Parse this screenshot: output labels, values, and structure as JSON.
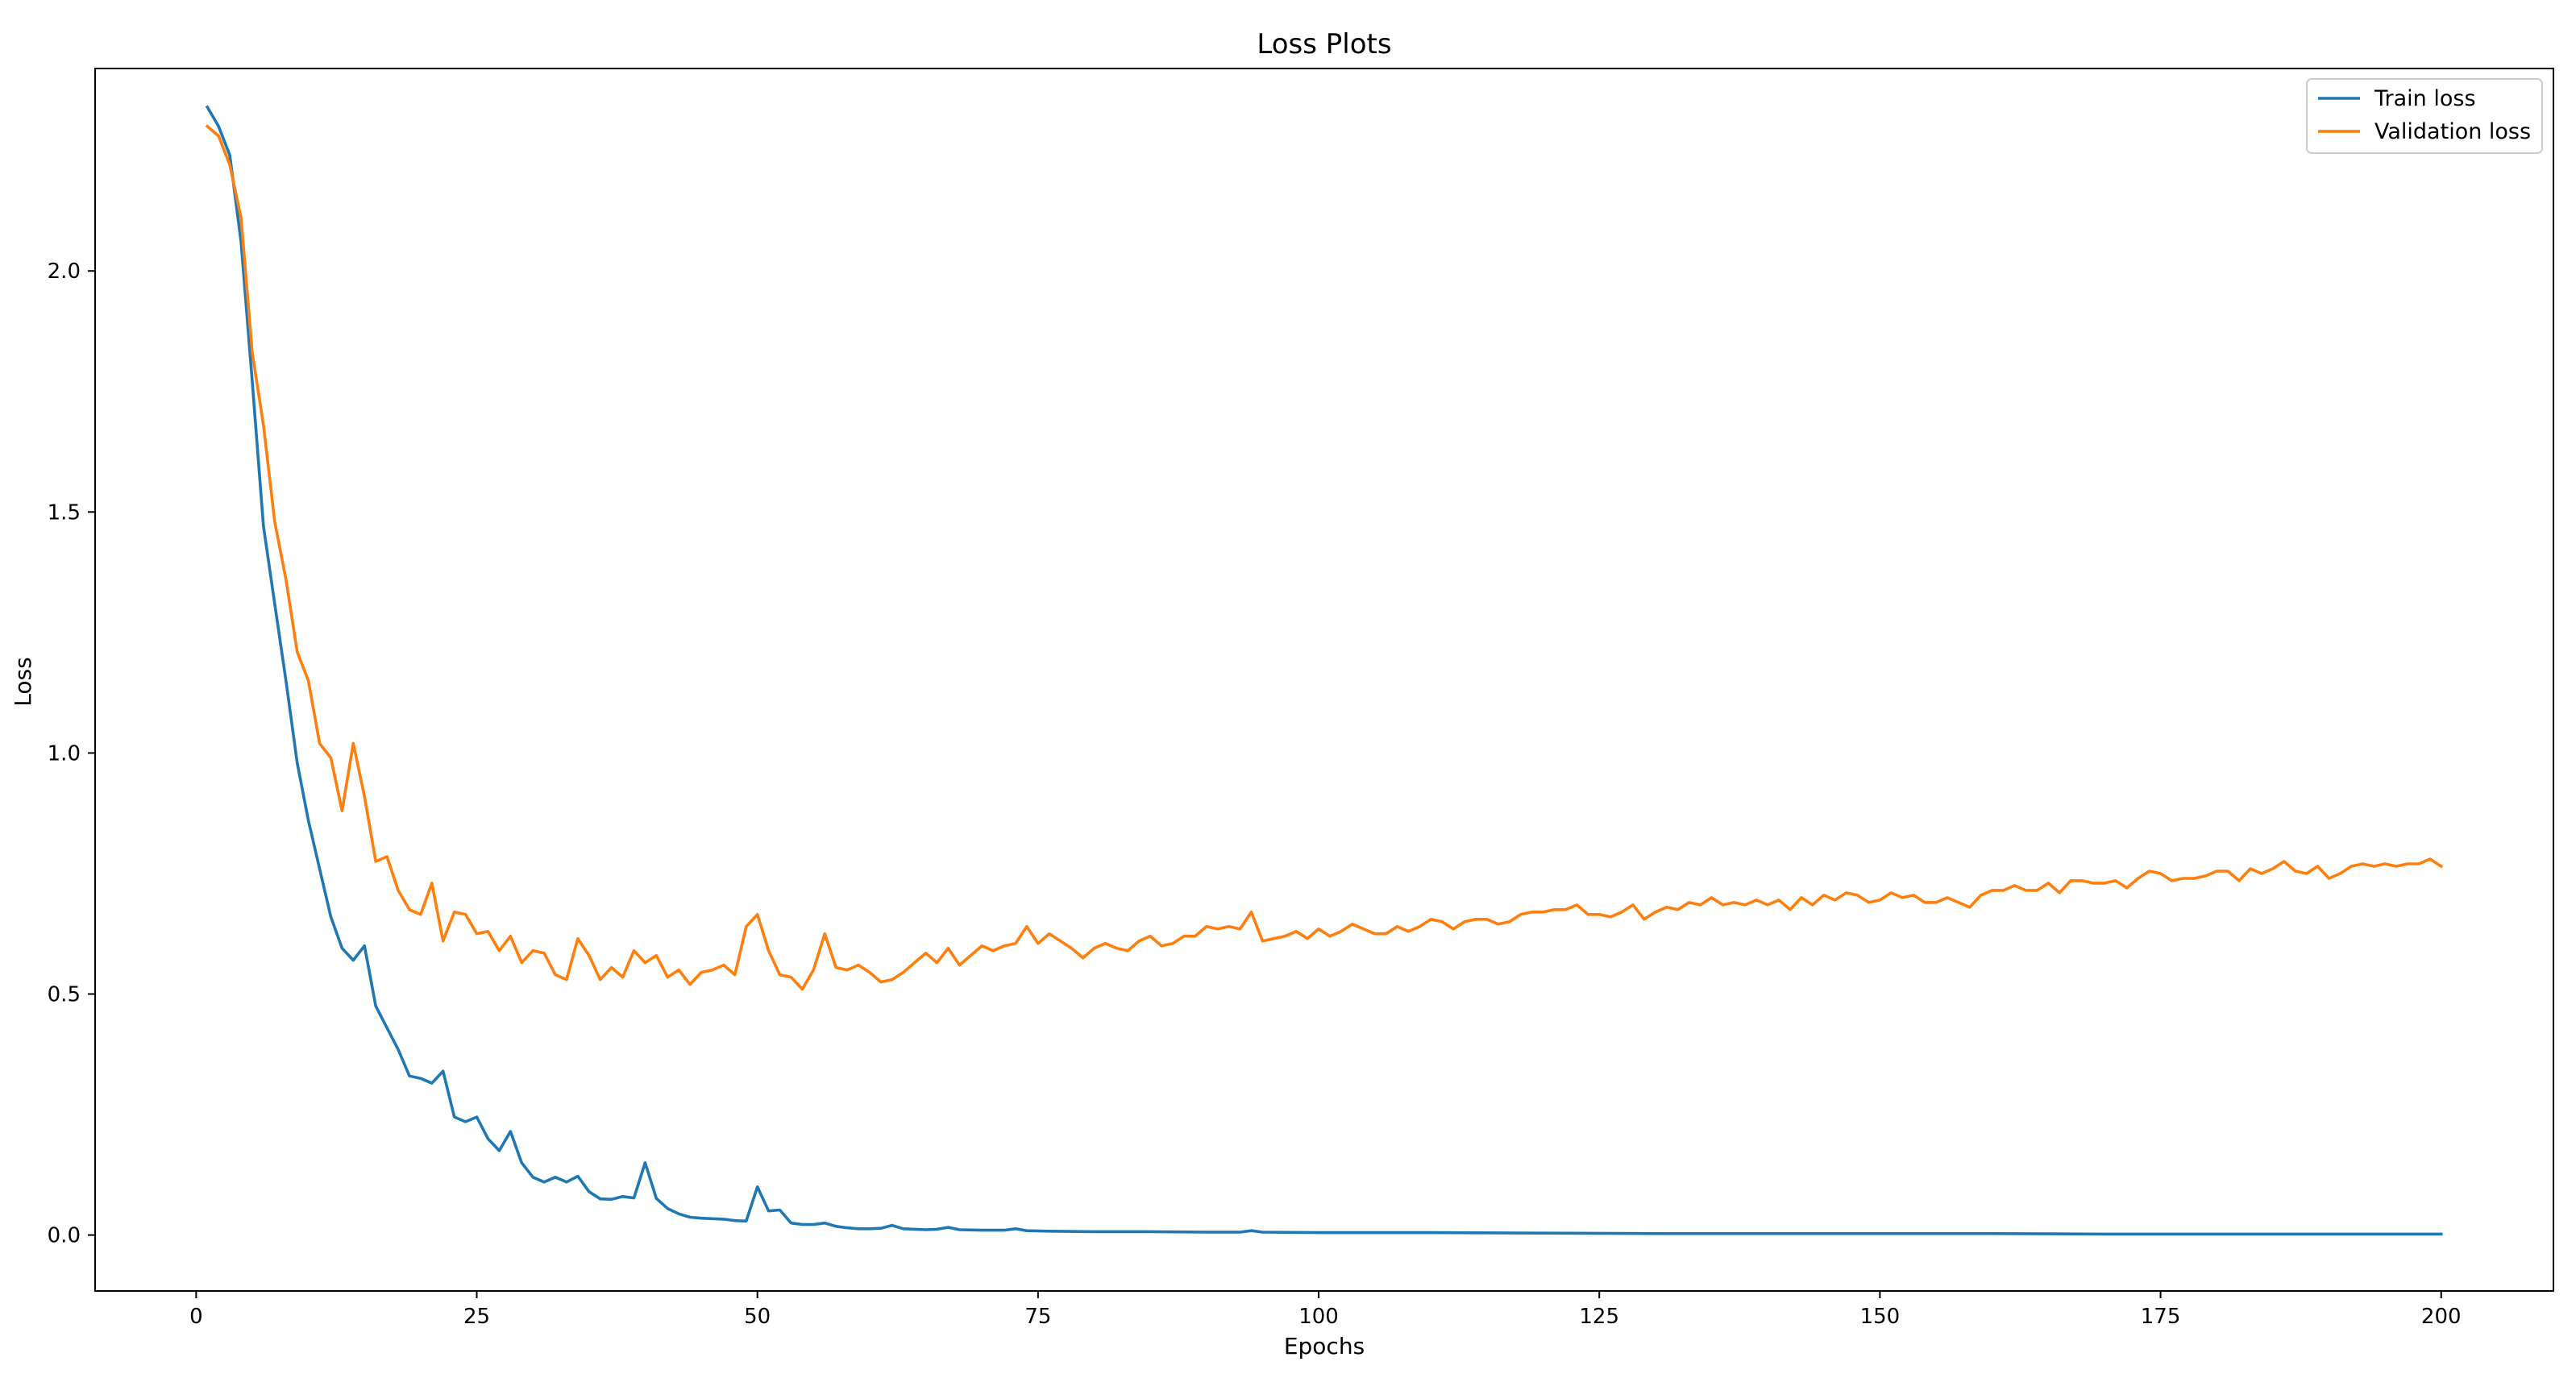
{
  "chart_data": {
    "type": "line",
    "title": "Loss Plots",
    "xlabel": "Epochs",
    "ylabel": "Loss",
    "xlim": [
      -9,
      210
    ],
    "ylim": [
      -0.116,
      2.42
    ],
    "xticks": [
      0,
      25,
      50,
      75,
      100,
      125,
      150,
      175,
      200
    ],
    "yticks": [
      0.0,
      0.5,
      1.0,
      1.5,
      2.0
    ],
    "ytick_labels": [
      "0.0",
      "0.5",
      "1.0",
      "1.5",
      "2.0"
    ],
    "grid": false,
    "legend_position": "top-right",
    "series": [
      {
        "name": "Train loss",
        "color": "#1f77b4",
        "points": [
          [
            1,
            2.34
          ],
          [
            2,
            2.3
          ],
          [
            3,
            2.24
          ],
          [
            4,
            2.06
          ],
          [
            5,
            1.77
          ],
          [
            6,
            1.47
          ],
          [
            7,
            1.31
          ],
          [
            8,
            1.15
          ],
          [
            9,
            0.98
          ],
          [
            10,
            0.86
          ],
          [
            11,
            0.76
          ],
          [
            12,
            0.66
          ],
          [
            13,
            0.595
          ],
          [
            14,
            0.57
          ],
          [
            15,
            0.6
          ],
          [
            16,
            0.475
          ],
          [
            17,
            0.43
          ],
          [
            18,
            0.385
          ],
          [
            19,
            0.33
          ],
          [
            20,
            0.325
          ],
          [
            21,
            0.315
          ],
          [
            22,
            0.34
          ],
          [
            23,
            0.245
          ],
          [
            24,
            0.235
          ],
          [
            25,
            0.245
          ],
          [
            26,
            0.2
          ],
          [
            27,
            0.175
          ],
          [
            28,
            0.215
          ],
          [
            29,
            0.15
          ],
          [
            30,
            0.12
          ],
          [
            31,
            0.11
          ],
          [
            32,
            0.12
          ],
          [
            33,
            0.11
          ],
          [
            34,
            0.122
          ],
          [
            35,
            0.09
          ],
          [
            36,
            0.075
          ],
          [
            37,
            0.074
          ],
          [
            38,
            0.08
          ],
          [
            39,
            0.077
          ],
          [
            40,
            0.15
          ],
          [
            41,
            0.076
          ],
          [
            42,
            0.055
          ],
          [
            43,
            0.044
          ],
          [
            44,
            0.037
          ],
          [
            45,
            0.035
          ],
          [
            46,
            0.034
          ],
          [
            47,
            0.033
          ],
          [
            48,
            0.03
          ],
          [
            49,
            0.029
          ],
          [
            50,
            0.1
          ],
          [
            51,
            0.05
          ],
          [
            52,
            0.052
          ],
          [
            53,
            0.025
          ],
          [
            54,
            0.022
          ],
          [
            55,
            0.022
          ],
          [
            56,
            0.025
          ],
          [
            57,
            0.018
          ],
          [
            58,
            0.015
          ],
          [
            59,
            0.013
          ],
          [
            60,
            0.013
          ],
          [
            61,
            0.014
          ],
          [
            62,
            0.02
          ],
          [
            63,
            0.013
          ],
          [
            64,
            0.012
          ],
          [
            65,
            0.011
          ],
          [
            66,
            0.012
          ],
          [
            67,
            0.016
          ],
          [
            68,
            0.011
          ],
          [
            70,
            0.01
          ],
          [
            72,
            0.01
          ],
          [
            73,
            0.013
          ],
          [
            74,
            0.009
          ],
          [
            76,
            0.008
          ],
          [
            80,
            0.007
          ],
          [
            85,
            0.007
          ],
          [
            90,
            0.006
          ],
          [
            93,
            0.006
          ],
          [
            94,
            0.009
          ],
          [
            95,
            0.006
          ],
          [
            100,
            0.005
          ],
          [
            110,
            0.005
          ],
          [
            120,
            0.004
          ],
          [
            130,
            0.003
          ],
          [
            140,
            0.003
          ],
          [
            150,
            0.003
          ],
          [
            160,
            0.003
          ],
          [
            170,
            0.002
          ],
          [
            180,
            0.002
          ],
          [
            190,
            0.002
          ],
          [
            200,
            0.002
          ]
        ]
      },
      {
        "name": "Validation loss",
        "color": "#ff7f0e",
        "points": [
          [
            1,
            2.3
          ],
          [
            2,
            2.28
          ],
          [
            3,
            2.22
          ],
          [
            4,
            2.11
          ],
          [
            5,
            1.83
          ],
          [
            6,
            1.68
          ],
          [
            7,
            1.48
          ],
          [
            8,
            1.36
          ],
          [
            9,
            1.21
          ],
          [
            10,
            1.15
          ],
          [
            11,
            1.02
          ],
          [
            12,
            0.99
          ],
          [
            13,
            0.88
          ],
          [
            14,
            1.02
          ],
          [
            15,
            0.91
          ],
          [
            16,
            0.775
          ],
          [
            17,
            0.785
          ],
          [
            18,
            0.715
          ],
          [
            19,
            0.675
          ],
          [
            20,
            0.665
          ],
          [
            21,
            0.73
          ],
          [
            22,
            0.61
          ],
          [
            23,
            0.67
          ],
          [
            24,
            0.665
          ],
          [
            25,
            0.625
          ],
          [
            26,
            0.63
          ],
          [
            27,
            0.59
          ],
          [
            28,
            0.62
          ],
          [
            29,
            0.565
          ],
          [
            30,
            0.59
          ],
          [
            31,
            0.585
          ],
          [
            32,
            0.54
          ],
          [
            33,
            0.53
          ],
          [
            34,
            0.615
          ],
          [
            35,
            0.58
          ],
          [
            36,
            0.53
          ],
          [
            37,
            0.555
          ],
          [
            38,
            0.535
          ],
          [
            39,
            0.59
          ],
          [
            40,
            0.565
          ],
          [
            41,
            0.58
          ],
          [
            42,
            0.535
          ],
          [
            43,
            0.55
          ],
          [
            44,
            0.52
          ],
          [
            45,
            0.545
          ],
          [
            46,
            0.55
          ],
          [
            47,
            0.56
          ],
          [
            48,
            0.54
          ],
          [
            49,
            0.64
          ],
          [
            50,
            0.665
          ],
          [
            51,
            0.59
          ],
          [
            52,
            0.54
          ],
          [
            53,
            0.535
          ],
          [
            54,
            0.51
          ],
          [
            55,
            0.55
          ],
          [
            56,
            0.625
          ],
          [
            57,
            0.555
          ],
          [
            58,
            0.55
          ],
          [
            59,
            0.56
          ],
          [
            60,
            0.545
          ],
          [
            61,
            0.525
          ],
          [
            62,
            0.53
          ],
          [
            63,
            0.545
          ],
          [
            64,
            0.565
          ],
          [
            65,
            0.585
          ],
          [
            66,
            0.565
          ],
          [
            67,
            0.595
          ],
          [
            68,
            0.56
          ],
          [
            69,
            0.58
          ],
          [
            70,
            0.6
          ],
          [
            71,
            0.59
          ],
          [
            72,
            0.6
          ],
          [
            73,
            0.605
          ],
          [
            74,
            0.64
          ],
          [
            75,
            0.605
          ],
          [
            76,
            0.625
          ],
          [
            77,
            0.61
          ],
          [
            78,
            0.595
          ],
          [
            79,
            0.575
          ],
          [
            80,
            0.595
          ],
          [
            81,
            0.605
          ],
          [
            82,
            0.595
          ],
          [
            83,
            0.59
          ],
          [
            84,
            0.61
          ],
          [
            85,
            0.62
          ],
          [
            86,
            0.6
          ],
          [
            87,
            0.605
          ],
          [
            88,
            0.62
          ],
          [
            89,
            0.62
          ],
          [
            90,
            0.64
          ],
          [
            91,
            0.635
          ],
          [
            92,
            0.64
          ],
          [
            93,
            0.635
          ],
          [
            94,
            0.67
          ],
          [
            95,
            0.61
          ],
          [
            96,
            0.615
          ],
          [
            97,
            0.62
          ],
          [
            98,
            0.63
          ],
          [
            99,
            0.615
          ],
          [
            100,
            0.635
          ],
          [
            101,
            0.62
          ],
          [
            102,
            0.63
          ],
          [
            103,
            0.645
          ],
          [
            104,
            0.635
          ],
          [
            105,
            0.625
          ],
          [
            106,
            0.625
          ],
          [
            107,
            0.64
          ],
          [
            108,
            0.63
          ],
          [
            109,
            0.64
          ],
          [
            110,
            0.655
          ],
          [
            111,
            0.65
          ],
          [
            112,
            0.635
          ],
          [
            113,
            0.65
          ],
          [
            114,
            0.655
          ],
          [
            115,
            0.655
          ],
          [
            116,
            0.645
          ],
          [
            117,
            0.65
          ],
          [
            118,
            0.665
          ],
          [
            119,
            0.67
          ],
          [
            120,
            0.67
          ],
          [
            121,
            0.675
          ],
          [
            122,
            0.675
          ],
          [
            123,
            0.685
          ],
          [
            124,
            0.665
          ],
          [
            125,
            0.665
          ],
          [
            126,
            0.66
          ],
          [
            127,
            0.67
          ],
          [
            128,
            0.685
          ],
          [
            129,
            0.655
          ],
          [
            130,
            0.67
          ],
          [
            131,
            0.68
          ],
          [
            132,
            0.675
          ],
          [
            133,
            0.69
          ],
          [
            134,
            0.685
          ],
          [
            135,
            0.7
          ],
          [
            136,
            0.685
          ],
          [
            137,
            0.69
          ],
          [
            138,
            0.685
          ],
          [
            139,
            0.695
          ],
          [
            140,
            0.685
          ],
          [
            141,
            0.695
          ],
          [
            142,
            0.675
          ],
          [
            143,
            0.7
          ],
          [
            144,
            0.685
          ],
          [
            145,
            0.705
          ],
          [
            146,
            0.695
          ],
          [
            147,
            0.71
          ],
          [
            148,
            0.705
          ],
          [
            149,
            0.69
          ],
          [
            150,
            0.695
          ],
          [
            151,
            0.71
          ],
          [
            152,
            0.7
          ],
          [
            153,
            0.705
          ],
          [
            154,
            0.69
          ],
          [
            155,
            0.69
          ],
          [
            156,
            0.7
          ],
          [
            157,
            0.69
          ],
          [
            158,
            0.68
          ],
          [
            159,
            0.705
          ],
          [
            160,
            0.715
          ],
          [
            161,
            0.715
          ],
          [
            162,
            0.725
          ],
          [
            163,
            0.715
          ],
          [
            164,
            0.715
          ],
          [
            165,
            0.73
          ],
          [
            166,
            0.71
          ],
          [
            167,
            0.735
          ],
          [
            168,
            0.735
          ],
          [
            169,
            0.73
          ],
          [
            170,
            0.73
          ],
          [
            171,
            0.735
          ],
          [
            172,
            0.72
          ],
          [
            173,
            0.74
          ],
          [
            174,
            0.755
          ],
          [
            175,
            0.75
          ],
          [
            176,
            0.735
          ],
          [
            177,
            0.74
          ],
          [
            178,
            0.74
          ],
          [
            179,
            0.745
          ],
          [
            180,
            0.755
          ],
          [
            181,
            0.755
          ],
          [
            182,
            0.735
          ],
          [
            183,
            0.76
          ],
          [
            184,
            0.75
          ],
          [
            185,
            0.76
          ],
          [
            186,
            0.775
          ],
          [
            187,
            0.755
          ],
          [
            188,
            0.75
          ],
          [
            189,
            0.765
          ],
          [
            190,
            0.74
          ],
          [
            191,
            0.75
          ],
          [
            192,
            0.765
          ],
          [
            193,
            0.77
          ],
          [
            194,
            0.765
          ],
          [
            195,
            0.77
          ],
          [
            196,
            0.765
          ],
          [
            197,
            0.77
          ],
          [
            198,
            0.77
          ],
          [
            199,
            0.78
          ],
          [
            200,
            0.765
          ]
        ]
      }
    ]
  }
}
